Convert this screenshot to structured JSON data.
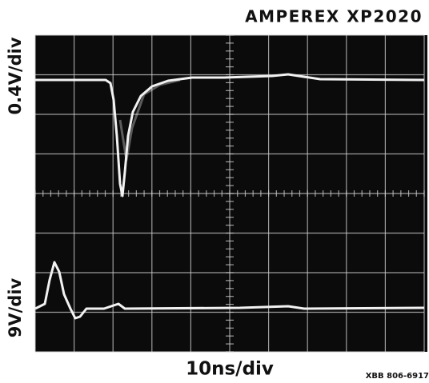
{
  "header": {
    "title": "AMPEREX XP2020"
  },
  "labels": {
    "upper_scale": "0.4V/div",
    "lower_scale": "9V/div",
    "time_scale": "10ns/div"
  },
  "footer": {
    "code": "XBB 806-6917"
  }
}
